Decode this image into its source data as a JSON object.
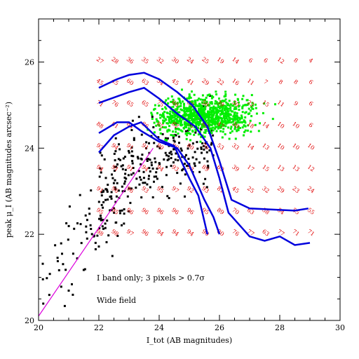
{
  "chart_data": {
    "type": "scatter",
    "xlabel": "I_tot (AB magnitudes)",
    "ylabel": "peak μ_I (AB magnitudes arcsec⁻²)",
    "xlim": [
      20,
      30
    ],
    "ylim": [
      20,
      27
    ],
    "x_ticks": [
      20,
      22,
      24,
      26,
      28,
      30
    ],
    "y_ticks": [
      20,
      22,
      24,
      26
    ],
    "x_tick_labels": [
      "20",
      "22",
      "24",
      "26",
      "28",
      "30"
    ],
    "y_tick_labels": [
      "20",
      "22",
      "24",
      "26"
    ],
    "grid": false,
    "annotations": [
      "I band only; 3 pixels > 0.7σ",
      "Wide field"
    ],
    "colors": {
      "black_points": "#000000",
      "green_points": "#00ee00",
      "blue_curves": "#0000dd",
      "magenta_line": "#dd00dd",
      "grid_numbers": "#e00000"
    },
    "black_points_note": "scattered detections spanning I_tot 20–26, peak μ 20.3–26",
    "green_points_note": "dense cloud centred near I_tot≈25.5, peak μ≈24.7",
    "magenta_line": [
      [
        20,
        20.1
      ],
      [
        23.8,
        24.0
      ]
    ],
    "blue_curves": [
      [
        [
          22,
          25.4
        ],
        [
          22.6,
          25.6
        ],
        [
          23,
          25.7
        ],
        [
          23.5,
          25.75
        ],
        [
          24,
          25.6
        ],
        [
          24.6,
          25.3
        ],
        [
          25.1,
          25.0
        ],
        [
          25.6,
          24.5
        ],
        [
          26,
          23.7
        ],
        [
          26.4,
          22.8
        ],
        [
          27.0,
          22.6
        ],
        [
          28.5,
          22.55
        ],
        [
          28.95,
          22.6
        ]
      ],
      [
        [
          22,
          25.05
        ],
        [
          22.6,
          25.2
        ],
        [
          23,
          25.3
        ],
        [
          23.5,
          25.4
        ],
        [
          24,
          25.15
        ],
        [
          24.6,
          24.8
        ],
        [
          25.2,
          24.5
        ],
        [
          25.7,
          24.0
        ],
        [
          26.0,
          23.3
        ],
        [
          26.3,
          22.5
        ],
        [
          27.0,
          21.95
        ],
        [
          27.5,
          21.85
        ],
        [
          28.0,
          21.95
        ],
        [
          28.5,
          21.75
        ],
        [
          29.0,
          21.8
        ]
      ],
      [
        [
          22,
          23.9
        ],
        [
          22.5,
          24.3
        ],
        [
          23,
          24.5
        ],
        [
          23.4,
          24.6
        ],
        [
          24,
          24.2
        ],
        [
          24.5,
          24.05
        ],
        [
          25,
          23.3
        ],
        [
          25.3,
          22.9
        ],
        [
          25.6,
          22.0
        ]
      ],
      [
        [
          22,
          24.35
        ],
        [
          22.6,
          24.6
        ],
        [
          23,
          24.6
        ],
        [
          23.4,
          24.4
        ],
        [
          24,
          24.15
        ],
        [
          24.6,
          24.0
        ],
        [
          25.0,
          23.6
        ],
        [
          25.5,
          22.8
        ],
        [
          25.8,
          22.4
        ],
        [
          26.0,
          22.0
        ]
      ]
    ],
    "completeness_grid": {
      "x": [
        22,
        22.5,
        23,
        23.5,
        24,
        24.5,
        25,
        25.5,
        26,
        26.5,
        27,
        27.5,
        28,
        28.5,
        29
      ],
      "rows": [
        {
          "y": 26,
          "values": [
            "27",
            "28",
            "36",
            "35",
            "32",
            "30",
            "24",
            "25",
            "19",
            "14",
            "6",
            "6",
            "12",
            "8",
            "4"
          ]
        },
        {
          "y": 25.5,
          "values": [
            "45",
            "45",
            "60",
            "63",
            "54",
            "45",
            "41",
            "29",
            "22",
            "16",
            "11",
            "7",
            "8",
            "8",
            "6"
          ]
        },
        {
          "y": 25,
          "values": [
            "71",
            "76",
            "65",
            "65",
            "75",
            "66",
            "63",
            "50",
            "39",
            "30",
            "22",
            "15",
            "11",
            "9",
            "6"
          ]
        },
        {
          "y": 24.5,
          "values": [
            "88",
            "81",
            "84",
            "86",
            "85",
            "82",
            "75",
            "63",
            "47",
            "30",
            "18",
            "14",
            "10",
            "10",
            "6"
          ]
        },
        {
          "y": 24,
          "values": [
            "93",
            "94",
            "91",
            "91",
            "90",
            "90",
            "80",
            "70",
            "53",
            "33",
            "14",
            "13",
            "10",
            "10",
            "10"
          ]
        },
        {
          "y": 23.5,
          "values": [
            "94",
            "91",
            "91",
            "94",
            "94",
            "93",
            "93",
            "89",
            "69",
            "39",
            "17",
            "15",
            "13",
            "13",
            "12"
          ]
        },
        {
          "y": 23,
          "values": [
            "91",
            "96",
            "96",
            "93",
            "95",
            "97",
            "92",
            "93",
            "81",
            "45",
            "25",
            "32",
            "29",
            "23",
            "24"
          ]
        },
        {
          "y": 22.5,
          "values": [
            "95",
            "95",
            "96",
            "96",
            "96",
            "96",
            "96",
            "95",
            "89",
            "70",
            "63",
            "58",
            "54",
            "55",
            "55"
          ]
        },
        {
          "y": 22,
          "values": [
            "98",
            "98",
            "97",
            "96",
            "94",
            "94",
            "94",
            "90",
            "80",
            "76",
            "77",
            "63",
            "77",
            "71",
            "71"
          ]
        }
      ]
    }
  }
}
